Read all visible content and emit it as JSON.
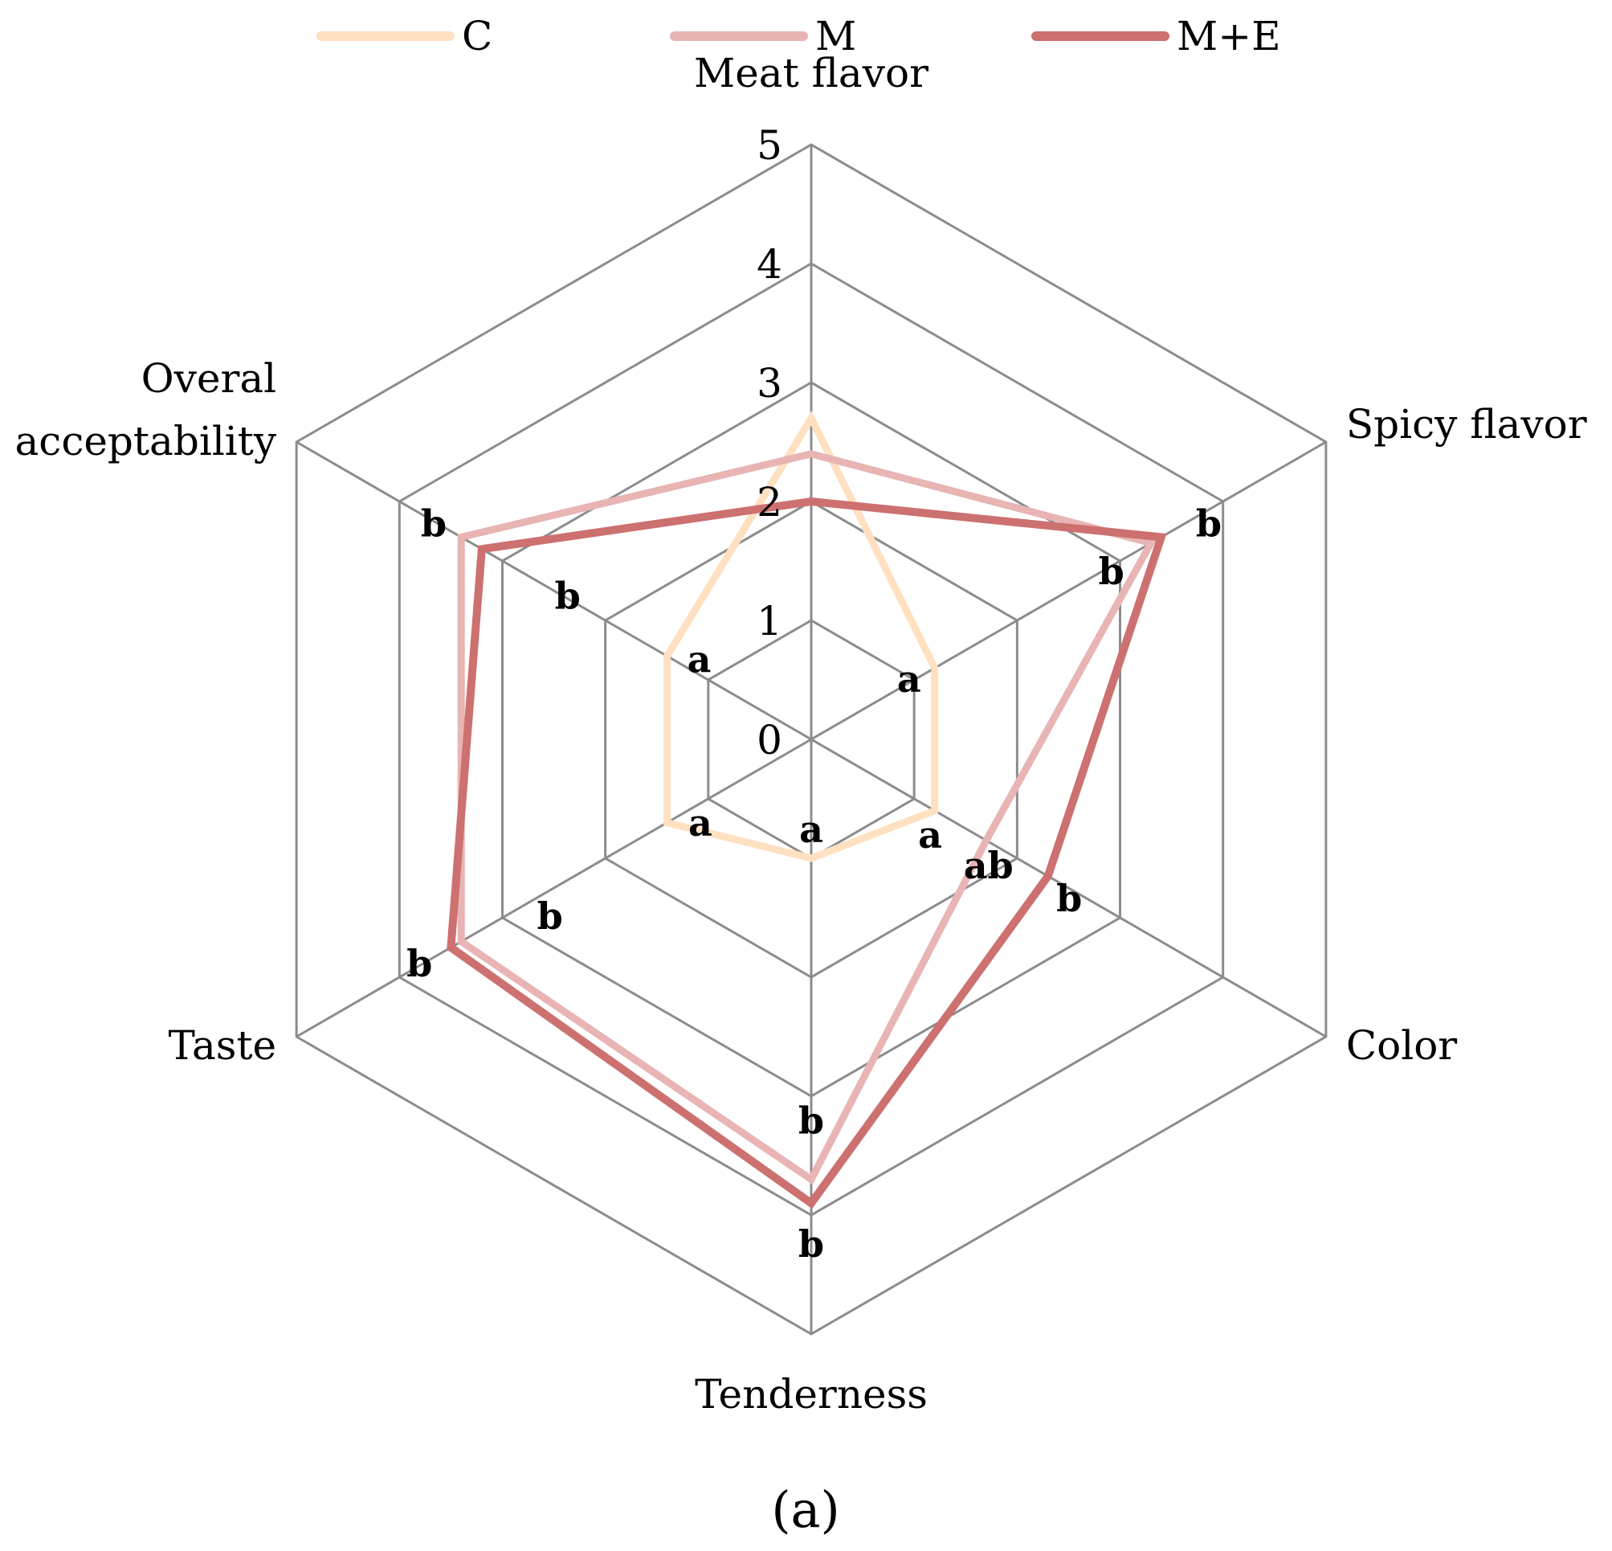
{
  "chart_data": {
    "type": "radar",
    "axes": [
      "Meat flavor",
      "Spicy flavor",
      "Color",
      "Tenderness",
      "Taste",
      "Overal acceptability"
    ],
    "axis_label_lines": [
      [
        "Meat flavor"
      ],
      [
        "Spicy flavor"
      ],
      [
        "Color"
      ],
      [
        "Tenderness"
      ],
      [
        "Taste"
      ],
      [
        "Overal",
        "acceptability"
      ]
    ],
    "rlim": [
      0,
      5
    ],
    "ticks": [
      "0",
      "1",
      "2",
      "3",
      "4",
      "5"
    ],
    "grid": true,
    "legend_position": "top",
    "series": [
      {
        "name": "C",
        "color": "#FFE0C0",
        "values": [
          2.7,
          1.2,
          1.2,
          1.0,
          1.4,
          1.4
        ]
      },
      {
        "name": "M",
        "color": "#E8B4B4",
        "values": [
          2.4,
          3.3,
          1.7,
          3.7,
          3.4,
          3.4
        ]
      },
      {
        "name": "M+E",
        "color": "#CD7070",
        "values": [
          2.0,
          3.4,
          2.3,
          3.9,
          3.5,
          3.2
        ]
      }
    ],
    "significance_labels": [
      {
        "axis": 0,
        "r": 1.55,
        "offset": [
          0,
          0
        ],
        "text": ""
      },
      {
        "axis": 1,
        "r": 1.2,
        "offset": [
          -32,
          30
        ],
        "text": "a"
      },
      {
        "axis": 1,
        "r": 3.15,
        "offset": [
          -30,
          40
        ],
        "text": "b"
      },
      {
        "axis": 1,
        "r": 3.55,
        "offset": [
          40,
          10
        ],
        "text": "b"
      },
      {
        "axis": 2,
        "r": 1.35,
        "offset": [
          -25,
          35
        ],
        "text": "a"
      },
      {
        "axis": 2,
        "r": 1.8,
        "offset": [
          -10,
          40
        ],
        "text": "ab"
      },
      {
        "axis": 2,
        "r": 2.35,
        "offset": [
          20,
          40
        ],
        "text": "b"
      },
      {
        "axis": 3,
        "r": 1.0,
        "offset": [
          0,
          -20
        ],
        "text": "a"
      },
      {
        "axis": 3,
        "r": 3.45,
        "offset": [
          0,
          -20
        ],
        "text": "b"
      },
      {
        "axis": 3,
        "r": 4.35,
        "offset": [
          0,
          0
        ],
        "text": "b"
      },
      {
        "axis": 4,
        "r": 1.35,
        "offset": [
          35,
          20
        ],
        "text": "a"
      },
      {
        "axis": 4,
        "r": 2.85,
        "offset": [
          40,
          25
        ],
        "text": "b"
      },
      {
        "axis": 4,
        "r": 3.65,
        "offset": [
          -20,
          25
        ],
        "text": "b"
      },
      {
        "axis": 5,
        "r": 1.4,
        "offset": [
          40,
          20
        ],
        "text": "a"
      },
      {
        "axis": 5,
        "r": 2.6,
        "offset": [
          30,
          30
        ],
        "text": "b"
      },
      {
        "axis": 5,
        "r": 3.55,
        "offset": [
          -15,
          10
        ],
        "text": "b"
      }
    ],
    "caption": "(a)"
  }
}
